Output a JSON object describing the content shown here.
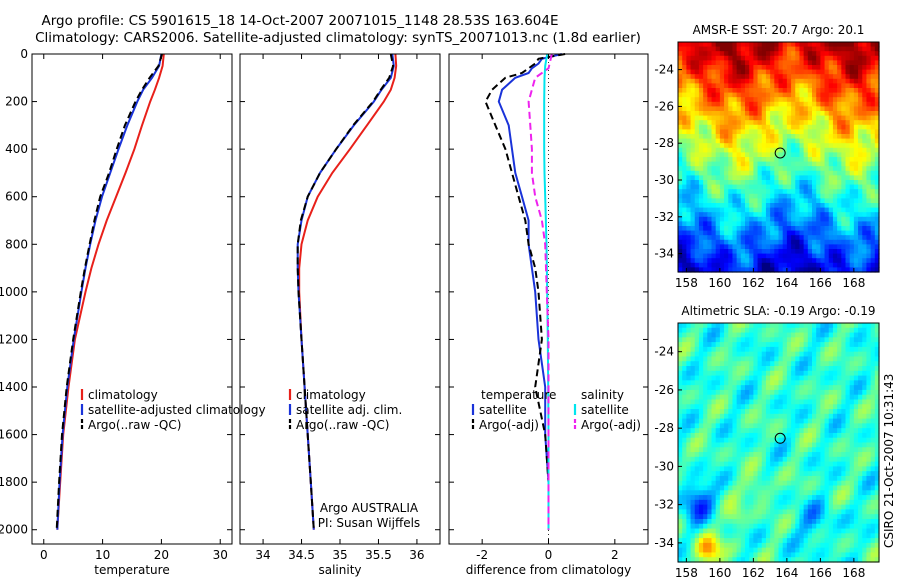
{
  "header": {
    "title_line1": "Argo profile: CS 5901615_18 14-Oct-2007 20071015_1148 28.53S 163.604E",
    "title_line2": "Climatology: CARS2006. Satellite-adjusted climatology: synTS_20071013.nc (1.8d earlier)"
  },
  "footer_stamp": "CSIRO 21-Oct-2007 10:31:43",
  "colors": {
    "climatology": "#e8201a",
    "satellite": "#1a33d9",
    "argo": "#000000",
    "sat_salinity": "#00e5ee",
    "argo_salinity": "#ee22ee"
  },
  "chart_data": [
    {
      "id": "temperature",
      "type": "line",
      "xlabel": "temperature",
      "xlim": [
        -2,
        32
      ],
      "xticks": [
        0,
        10,
        20,
        30
      ],
      "ylim": [
        0,
        2060
      ],
      "yticks": [
        0,
        200,
        400,
        600,
        800,
        1000,
        1200,
        1400,
        1600,
        1800,
        2000
      ],
      "y_reversed": true,
      "legend": {
        "placement": "lower-right",
        "entries": [
          {
            "label": "climatology",
            "color": "#e8201a",
            "dash": false
          },
          {
            "label": "satellite-adjusted climatology",
            "color": "#1a33d9",
            "dash": false
          },
          {
            "label": "Argo(..raw -QC)",
            "color": "#000000",
            "dash": true
          }
        ]
      },
      "series": [
        {
          "color": "#e8201a",
          "dash": false,
          "depth": [
            0,
            50,
            100,
            150,
            200,
            300,
            400,
            500,
            600,
            700,
            800,
            900,
            1000,
            1200,
            1400,
            1600,
            1800,
            2000
          ],
          "values": [
            20.4,
            20.2,
            19.6,
            18.9,
            18.1,
            16.7,
            15.4,
            13.9,
            12.3,
            10.7,
            9.3,
            8.1,
            7.1,
            5.3,
            4.2,
            3.3,
            2.8,
            2.3
          ]
        },
        {
          "color": "#1a33d9",
          "dash": false,
          "depth": [
            0,
            50,
            100,
            150,
            200,
            300,
            400,
            500,
            600,
            700,
            800,
            900,
            1000,
            1200,
            1400,
            1600,
            1800,
            2000
          ],
          "values": [
            20.0,
            19.6,
            18.4,
            16.9,
            15.9,
            14.2,
            12.7,
            11.3,
            9.9,
            8.8,
            7.9,
            7.1,
            6.4,
            5.1,
            4.0,
            3.2,
            2.7,
            2.3
          ]
        },
        {
          "color": "#000000",
          "dash": true,
          "depth": [
            0,
            50,
            100,
            150,
            200,
            300,
            400,
            500,
            600,
            700,
            800,
            900,
            1000,
            1200,
            1400,
            1600,
            1800,
            2000
          ],
          "values": [
            20.1,
            19.5,
            18.0,
            16.7,
            15.6,
            13.8,
            12.4,
            11.1,
            9.6,
            8.6,
            7.8,
            7.0,
            6.3,
            5.0,
            3.9,
            3.1,
            2.6,
            2.2
          ]
        }
      ]
    },
    {
      "id": "salinity",
      "type": "line",
      "xlabel": "salinity",
      "xlim": [
        33.7,
        36.3
      ],
      "xticks": [
        34,
        34.5,
        35,
        35.5,
        36
      ],
      "ylim": [
        0,
        2060
      ],
      "y_reversed": true,
      "legend": {
        "placement": "lower-right",
        "entries": [
          {
            "label": "climatology",
            "color": "#e8201a",
            "dash": false
          },
          {
            "label": "satellite adj. clim.",
            "color": "#1a33d9",
            "dash": false
          },
          {
            "label": "Argo(..raw -QC)",
            "color": "#000000",
            "dash": true
          }
        ]
      },
      "annotation": [
        "Argo AUSTRALIA",
        "PI: Susan Wijffels"
      ],
      "series": [
        {
          "color": "#e8201a",
          "dash": false,
          "depth": [
            0,
            50,
            100,
            150,
            200,
            300,
            400,
            500,
            600,
            700,
            800,
            900,
            1000,
            1200,
            1400,
            1600,
            1800,
            2000
          ],
          "values": [
            35.72,
            35.73,
            35.71,
            35.66,
            35.57,
            35.35,
            35.13,
            34.9,
            34.71,
            34.58,
            34.5,
            34.47,
            34.47,
            34.5,
            34.54,
            34.58,
            34.62,
            34.66
          ]
        },
        {
          "color": "#1a33d9",
          "dash": false,
          "depth": [
            0,
            50,
            100,
            150,
            200,
            300,
            400,
            500,
            600,
            700,
            800,
            900,
            1000,
            1200,
            1400,
            1600,
            1800,
            2000
          ],
          "values": [
            35.68,
            35.7,
            35.66,
            35.54,
            35.44,
            35.18,
            34.95,
            34.74,
            34.58,
            34.5,
            34.45,
            34.45,
            34.46,
            34.5,
            34.54,
            34.58,
            34.62,
            34.66
          ]
        },
        {
          "color": "#000000",
          "dash": true,
          "depth": [
            0,
            50,
            100,
            150,
            200,
            300,
            400,
            500,
            600,
            700,
            800,
            900,
            1000,
            1200,
            1400,
            1600,
            1800,
            2000
          ],
          "values": [
            35.66,
            35.69,
            35.64,
            35.53,
            35.43,
            35.17,
            34.95,
            34.74,
            34.58,
            34.49,
            34.45,
            34.45,
            34.46,
            34.5,
            34.54,
            34.58,
            34.62,
            34.66
          ]
        }
      ]
    },
    {
      "id": "difference",
      "type": "line",
      "xlabel": "difference from climatology",
      "xlim": [
        -3,
        3
      ],
      "xticks": [
        -2,
        0,
        2
      ],
      "ylim": [
        0,
        2060
      ],
      "y_reversed": true,
      "zero_line": true,
      "legend": {
        "placement": "lower",
        "groups": [
          {
            "title": "temperature",
            "entries": [
              {
                "label": "satellite",
                "color": "#1a33d9",
                "dash": false
              },
              {
                "label": "Argo(-adj)",
                "color": "#000000",
                "dash": true
              }
            ]
          },
          {
            "title": "salinity",
            "entries": [
              {
                "label": "satellite",
                "color": "#00e5ee",
                "dash": false
              },
              {
                "label": "Argo(-adj)",
                "color": "#ee22ee",
                "dash": true
              }
            ]
          }
        ]
      },
      "series": [
        {
          "color": "#1a33d9",
          "dash": false,
          "depth": [
            0,
            20,
            40,
            60,
            80,
            100,
            150,
            200,
            300,
            400,
            500,
            600,
            700,
            800,
            900,
            1000,
            1200,
            1400,
            1600,
            1800,
            2000
          ],
          "values": [
            0.4,
            -0.2,
            -0.3,
            -0.5,
            -0.6,
            -1.0,
            -1.4,
            -1.5,
            -1.2,
            -1.1,
            -1.0,
            -0.8,
            -0.6,
            -0.6,
            -0.5,
            -0.4,
            -0.3,
            -0.1,
            -0.1,
            0.0,
            0.0
          ]
        },
        {
          "color": "#000000",
          "dash": true,
          "depth": [
            0,
            20,
            40,
            60,
            80,
            100,
            150,
            200,
            300,
            400,
            500,
            600,
            700,
            800,
            900,
            1000,
            1200,
            1400,
            1600,
            1800,
            2000
          ],
          "values": [
            0.5,
            -0.3,
            -0.4,
            -0.6,
            -0.8,
            -1.3,
            -1.7,
            -1.9,
            -1.6,
            -1.3,
            -1.1,
            -0.9,
            -0.7,
            -0.6,
            -0.4,
            -0.3,
            -0.2,
            -0.4,
            -0.1,
            0.0,
            0.0
          ]
        },
        {
          "color": "#00e5ee",
          "dash": false,
          "depth": [
            0,
            50,
            100,
            200,
            300,
            400,
            500,
            600,
            800,
            1000,
            1200,
            1400,
            1600,
            1800,
            2000
          ],
          "values": [
            -0.04,
            -0.1,
            -0.12,
            -0.13,
            -0.13,
            -0.13,
            -0.12,
            -0.1,
            -0.06,
            -0.04,
            -0.02,
            -0.01,
            0.0,
            0.0,
            0.0
          ]
        },
        {
          "color": "#ee22ee",
          "dash": true,
          "depth": [
            0,
            30,
            60,
            100,
            150,
            200,
            300,
            400,
            500,
            600,
            700,
            800,
            1000,
            1200,
            1400,
            1600,
            1800,
            2000
          ],
          "values": [
            0.1,
            0.05,
            0.0,
            -0.4,
            -0.5,
            -0.6,
            -0.55,
            -0.5,
            -0.5,
            -0.4,
            -0.2,
            -0.1,
            -0.05,
            0.0,
            0.0,
            0.0,
            0.0,
            0.0
          ]
        }
      ]
    },
    {
      "id": "sst_map",
      "type": "heatmap",
      "title": "AMSR-E SST: 20.7 Argo: 20.1",
      "xlim": [
        157.5,
        169.5
      ],
      "xticks": [
        158,
        160,
        162,
        164,
        166,
        168
      ],
      "ylim": [
        -35,
        -22.5
      ],
      "yticks": [
        -24,
        -26,
        -28,
        -30,
        -32,
        -34
      ],
      "profile_marker": {
        "lon": 163.6,
        "lat": -28.53
      }
    },
    {
      "id": "sla_map",
      "type": "heatmap",
      "title": "Altimetric SLA: -0.19 Argo: -0.19",
      "xlim": [
        157.5,
        169.5
      ],
      "xticks": [
        158,
        160,
        162,
        164,
        166,
        168
      ],
      "ylim": [
        -35,
        -22.5
      ],
      "yticks": [
        -24,
        -26,
        -28,
        -30,
        -32,
        -34
      ],
      "profile_marker": {
        "lon": 163.6,
        "lat": -28.53
      }
    }
  ]
}
